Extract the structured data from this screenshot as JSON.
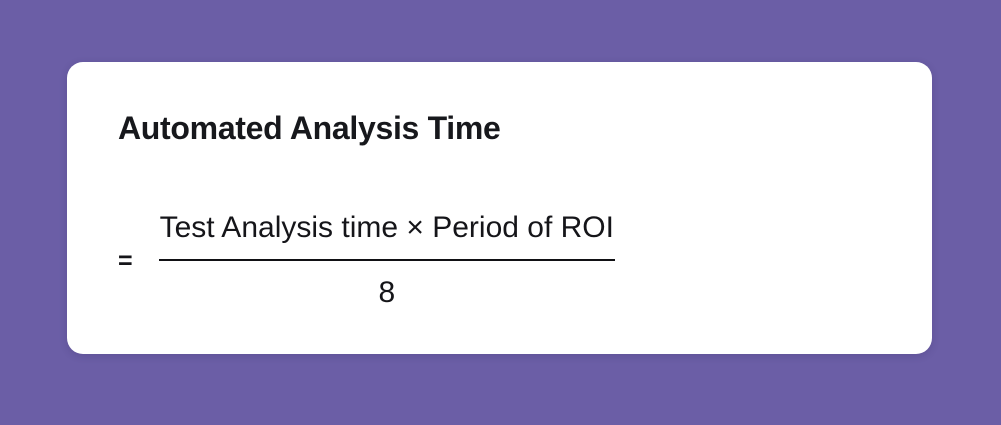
{
  "colors": {
    "background": "#6b5ea6",
    "card": "#ffffff",
    "text": "#17181c",
    "fraction_line": "#111114"
  },
  "card": {
    "title": "Automated Analysis Time",
    "formula": {
      "equals_sign": "=",
      "numerator": "Test Analysis time × Period of ROI",
      "denominator": "8"
    }
  }
}
